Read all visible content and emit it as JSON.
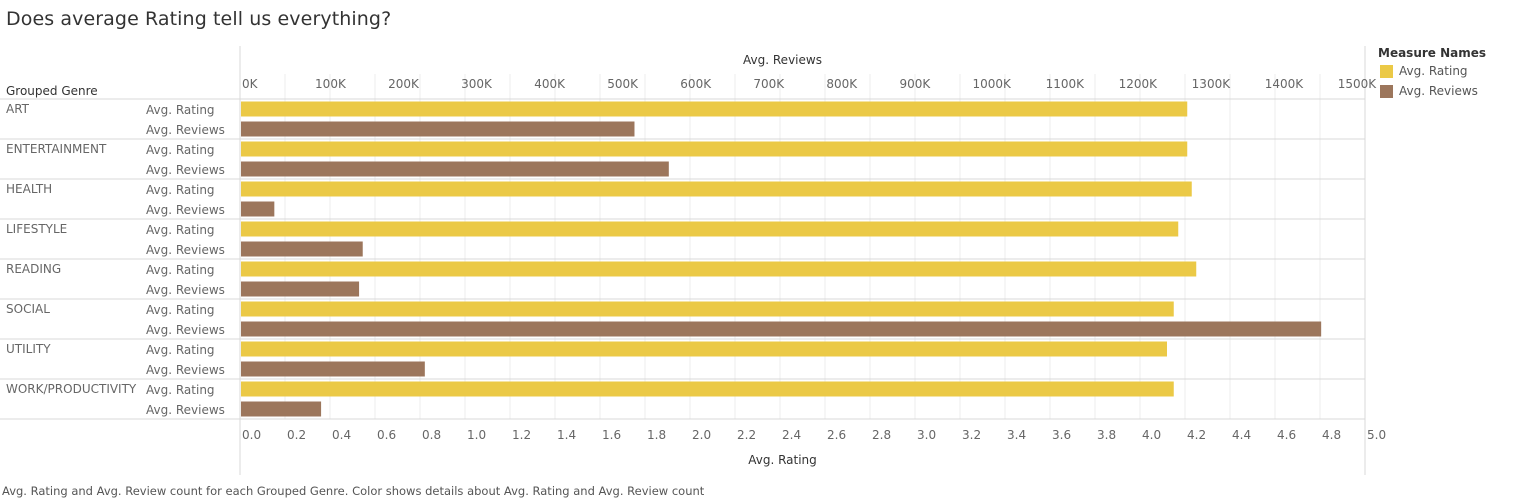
{
  "title": "Does average Rating tell us everything?",
  "caption": "Avg. Rating and Avg. Review count for each Grouped Genre.  Color shows details about Avg. Rating and Avg. Review count",
  "row_header": "Grouped Genre",
  "legend": {
    "title": "Measure Names",
    "items": [
      {
        "label": "Avg. Rating",
        "color": "#ebc946"
      },
      {
        "label": "Avg. Reviews",
        "color": "#9c765c"
      }
    ]
  },
  "chart_data": {
    "type": "bar",
    "orientation": "horizontal",
    "categories": [
      "ART",
      "ENTERTAINMENT",
      "HEALTH",
      "LIFESTYLE",
      "READING",
      "SOCIAL",
      "UTILITY",
      "WORK/PRODUCTIVITY"
    ],
    "series": [
      {
        "name": "Avg. Rating",
        "color": "#ebc946",
        "axis": "bottom",
        "values": [
          4.21,
          4.21,
          4.23,
          4.17,
          4.25,
          4.15,
          4.12,
          4.15
        ]
      },
      {
        "name": "Avg. Reviews",
        "color": "#9c765c",
        "axis": "top",
        "values": [
          540000,
          587000,
          47000,
          168000,
          163000,
          1480000,
          253000,
          111000
        ]
      }
    ],
    "top_axis": {
      "label": "Avg. Reviews",
      "range": [
        0,
        1540000
      ],
      "ticks": [
        0,
        100000,
        200000,
        300000,
        400000,
        500000,
        600000,
        700000,
        800000,
        900000,
        1000000,
        1100000,
        1200000,
        1300000,
        1400000,
        1500000
      ],
      "tick_labels": [
        "0K",
        "100K",
        "200K",
        "300K",
        "400K",
        "500K",
        "600K",
        "700K",
        "800K",
        "900K",
        "1000K",
        "1100K",
        "1200K",
        "1300K",
        "1400K",
        "1500K"
      ]
    },
    "bottom_axis": {
      "label": "Avg. Rating",
      "range": [
        0,
        5.0
      ],
      "ticks": [
        0,
        0.2,
        0.4,
        0.6,
        0.8,
        1.0,
        1.2,
        1.4,
        1.6,
        1.8,
        2.0,
        2.2,
        2.4,
        2.6,
        2.8,
        3.0,
        3.2,
        3.4,
        3.6,
        3.8,
        4.0,
        4.2,
        4.4,
        4.6,
        4.8,
        5.0
      ],
      "tick_labels": [
        "0.0",
        "0.2",
        "0.4",
        "0.6",
        "0.8",
        "1.0",
        "1.2",
        "1.4",
        "1.6",
        "1.8",
        "2.0",
        "2.2",
        "2.4",
        "2.6",
        "2.8",
        "3.0",
        "3.2",
        "3.4",
        "3.6",
        "3.8",
        "4.0",
        "4.2",
        "4.4",
        "4.6",
        "4.8",
        "5.0"
      ]
    },
    "grid": true,
    "legend_position": "right"
  }
}
